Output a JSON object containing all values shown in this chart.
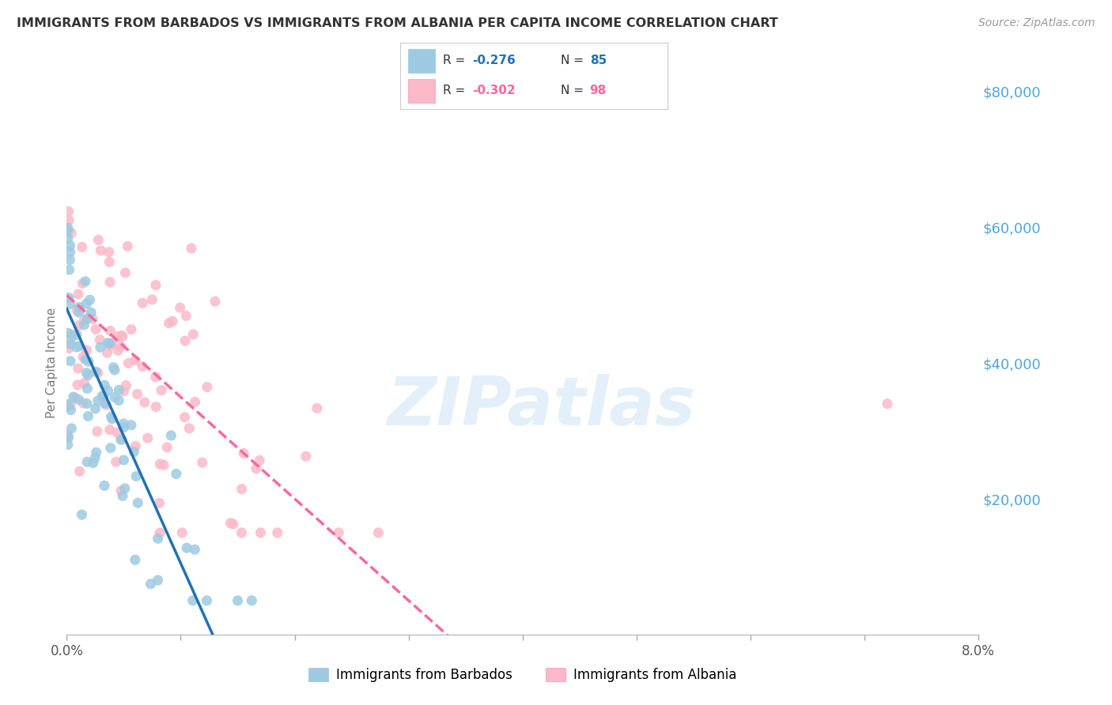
{
  "title": "IMMIGRANTS FROM BARBADOS VS IMMIGRANTS FROM ALBANIA PER CAPITA INCOME CORRELATION CHART",
  "source": "Source: ZipAtlas.com",
  "ylabel": "Per Capita Income",
  "x_min": 0.0,
  "x_max": 0.08,
  "y_min": 0,
  "y_max": 80000,
  "y_ticks": [
    20000,
    40000,
    60000,
    80000
  ],
  "y_tick_labels": [
    "$20,000",
    "$40,000",
    "$60,000",
    "$80,000"
  ],
  "barbados_color": "#9ecae1",
  "albania_color": "#fcb9c8",
  "barbados_R": -0.276,
  "barbados_N": 85,
  "albania_R": -0.302,
  "albania_N": 98,
  "barbados_line_color": "#2171b5",
  "albania_line_color": "#f768a1",
  "watermark": "ZIPatlas",
  "background_color": "#ffffff",
  "grid_color": "#d0d0d0",
  "right_axis_color": "#4da6e8",
  "title_color": "#333333",
  "legend_label_barbados": "Immigrants from Barbados",
  "legend_label_albania": "Immigrants from Albania",
  "barbados_line_intercept": 48000,
  "barbados_line_slope": -3750000,
  "albania_line_intercept": 50000,
  "albania_line_slope": -1500000
}
